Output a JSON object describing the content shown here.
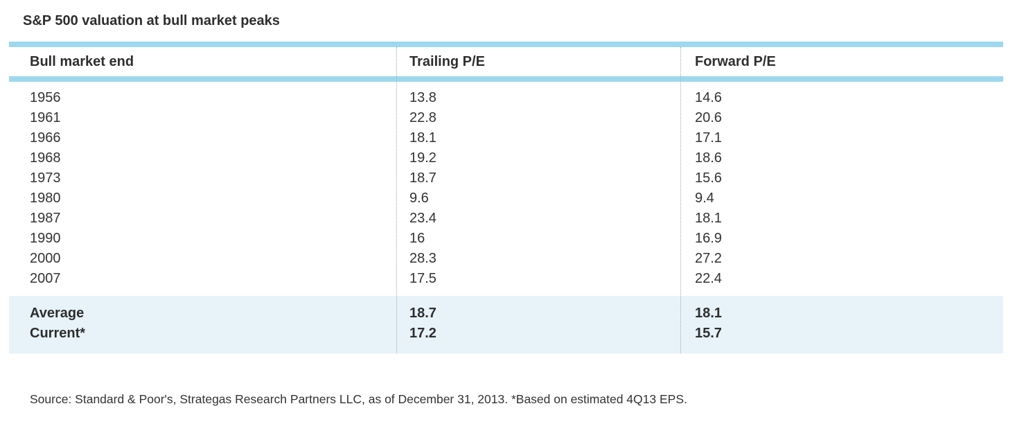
{
  "title": "S&P 500 valuation at bull market peaks",
  "table": {
    "columns": [
      "Bull market end",
      "Trailing P/E",
      "Forward P/E"
    ],
    "rows": [
      {
        "label": "1956",
        "trailing": "13.8",
        "forward": "14.6"
      },
      {
        "label": "1961",
        "trailing": "22.8",
        "forward": "20.6"
      },
      {
        "label": "1966",
        "trailing": "18.1",
        "forward": "17.1"
      },
      {
        "label": "1968",
        "trailing": "19.2",
        "forward": "18.6"
      },
      {
        "label": "1973",
        "trailing": "18.7",
        "forward": "15.6"
      },
      {
        "label": "1980",
        "trailing": "9.6",
        "forward": "9.4"
      },
      {
        "label": "1987",
        "trailing": "23.4",
        "forward": "18.1"
      },
      {
        "label": "1990",
        "trailing": "16",
        "forward": "16.9"
      },
      {
        "label": "2000",
        "trailing": "28.3",
        "forward": "27.2"
      },
      {
        "label": "2007",
        "trailing": "17.5",
        "forward": "22.4"
      }
    ],
    "summary_rows": [
      {
        "label": "Average",
        "trailing": "18.7",
        "forward": "18.1"
      },
      {
        "label": "Current*",
        "trailing": "17.2",
        "forward": "15.7"
      }
    ]
  },
  "source": "Source: Standard & Poor's, Strategas Research Partners LLC, as of December 31, 2013. *Based on estimated 4Q13 EPS.",
  "colors": {
    "accent_bar": "#9ed8ee",
    "summary_band_bg": "#e7f3f9",
    "text": "#333333",
    "column_divider": "#a6a6a6"
  },
  "chart_data": {
    "type": "table",
    "title": "S&P 500 valuation at bull market peaks",
    "columns": [
      "Bull market end",
      "Trailing P/E",
      "Forward P/E"
    ],
    "rows": [
      [
        "1956",
        13.8,
        14.6
      ],
      [
        "1961",
        22.8,
        20.6
      ],
      [
        "1966",
        18.1,
        17.1
      ],
      [
        "1968",
        19.2,
        18.6
      ],
      [
        "1973",
        18.7,
        15.6
      ],
      [
        "1980",
        9.6,
        9.4
      ],
      [
        "1987",
        23.4,
        18.1
      ],
      [
        "1990",
        16,
        16.9
      ],
      [
        "2000",
        28.3,
        27.2
      ],
      [
        "2007",
        17.5,
        22.4
      ]
    ],
    "summary_rows": [
      [
        "Average",
        18.7,
        18.1
      ],
      [
        "Current*",
        17.2,
        15.7
      ]
    ],
    "source": "Source: Standard & Poor's, Strategas Research Partners LLC, as of December 31, 2013. *Based on estimated 4Q13 EPS."
  }
}
